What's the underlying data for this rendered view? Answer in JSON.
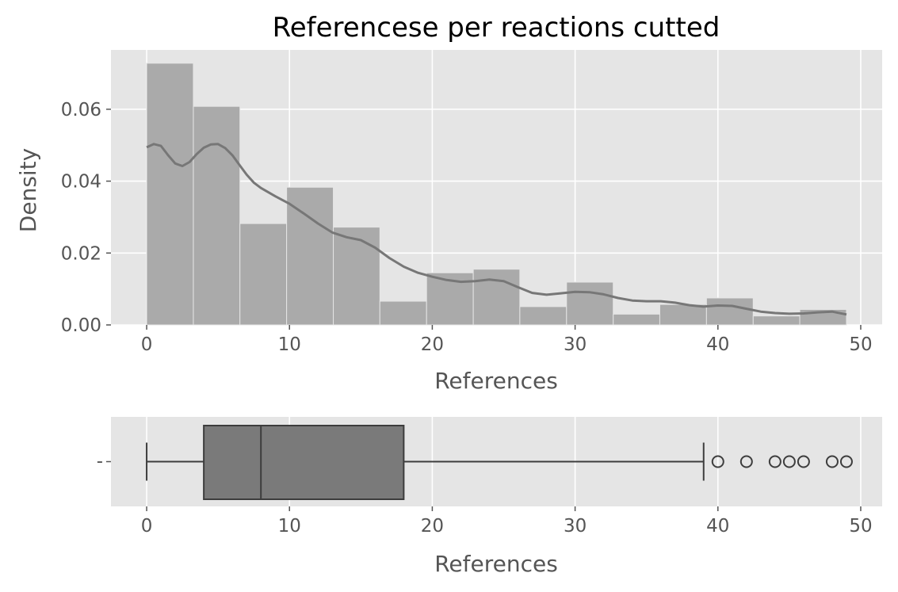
{
  "chart_data": [
    {
      "type": "histogram",
      "title": "Referencese per reactions cutted",
      "xlabel": "References",
      "ylabel": "Density",
      "xlim": [
        -2.5,
        51.5
      ],
      "ylim": [
        0,
        0.0765
      ],
      "xticks": [
        "0",
        "10",
        "20",
        "30",
        "40",
        "50"
      ],
      "yticks": [
        "0.00",
        "0.02",
        "0.04",
        "0.06"
      ],
      "grid": true,
      "bin_edges": [
        0,
        3.27,
        6.53,
        9.8,
        13.07,
        16.33,
        19.6,
        22.87,
        26.13,
        29.4,
        32.67,
        35.93,
        39.2,
        42.47,
        45.73,
        49
      ],
      "values": [
        0.0728,
        0.0608,
        0.0282,
        0.0383,
        0.0272,
        0.0066,
        0.0145,
        0.0155,
        0.0051,
        0.0119,
        0.003,
        0.0057,
        0.0075,
        0.0025,
        0.0043
      ],
      "bar_color": "#aaaaaa",
      "kde": {
        "x": [
          0,
          0.5,
          1,
          1.5,
          2,
          2.5,
          3,
          3.5,
          4,
          4.5,
          5,
          5.5,
          6,
          6.5,
          7,
          7.5,
          8,
          9,
          10,
          11,
          12,
          13,
          14,
          15,
          16,
          17,
          18,
          19,
          20,
          21,
          22,
          23,
          24,
          25,
          26,
          27,
          28,
          29,
          30,
          31,
          32,
          33,
          34,
          35,
          36,
          37,
          38,
          39,
          40,
          41,
          42,
          43,
          44,
          45,
          46,
          47,
          48,
          49
        ],
        "y": [
          0.0494,
          0.0503,
          0.0498,
          0.0472,
          0.0449,
          0.0442,
          0.0453,
          0.0475,
          0.0493,
          0.0502,
          0.0503,
          0.0492,
          0.0472,
          0.0445,
          0.0418,
          0.0396,
          0.0381,
          0.0358,
          0.0337,
          0.031,
          0.0282,
          0.0257,
          0.0244,
          0.0236,
          0.0215,
          0.0186,
          0.0162,
          0.0145,
          0.0134,
          0.0125,
          0.012,
          0.0122,
          0.0126,
          0.0122,
          0.0105,
          0.0089,
          0.0084,
          0.0088,
          0.0092,
          0.0091,
          0.0085,
          0.0075,
          0.0068,
          0.0066,
          0.0066,
          0.0062,
          0.0055,
          0.0051,
          0.0054,
          0.0053,
          0.0045,
          0.0037,
          0.0033,
          0.0031,
          0.0032,
          0.0035,
          0.0037,
          0.0029
        ],
        "color": "#777777"
      }
    },
    {
      "type": "boxplot",
      "xlabel": "References",
      "ytick": "-",
      "xlim": [
        -2.5,
        51.5
      ],
      "xticks": [
        "0",
        "10",
        "20",
        "30",
        "40",
        "50"
      ],
      "grid": true,
      "whisker_low": 0,
      "q1": 4,
      "median": 8,
      "q3": 18,
      "whisker_high": 39,
      "outliers": [
        40,
        42,
        44,
        45,
        46,
        48,
        49
      ],
      "box_color": "#7a7a7a"
    }
  ]
}
